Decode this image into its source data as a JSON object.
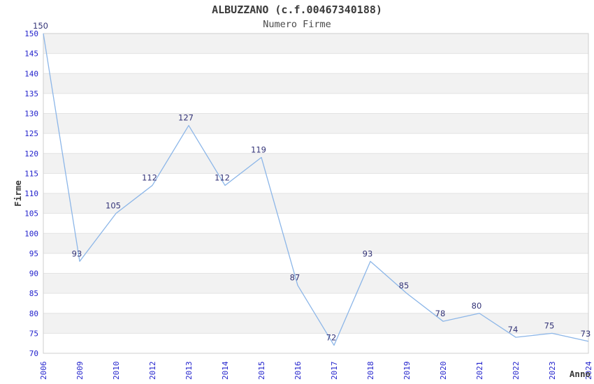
{
  "chart_data": {
    "type": "line",
    "title": "ALBUZZANO (c.f.00467340188)",
    "subtitle": "Numero Firme",
    "xlabel": "Anno",
    "ylabel": "Firme",
    "x": [
      "2006",
      "2009",
      "2010",
      "2012",
      "2013",
      "2014",
      "2015",
      "2016",
      "2017",
      "2018",
      "2019",
      "2020",
      "2021",
      "2022",
      "2023",
      "2024"
    ],
    "values": [
      150,
      93,
      105,
      112,
      127,
      112,
      119,
      87,
      72,
      93,
      85,
      78,
      80,
      74,
      75,
      73
    ],
    "point_labels": [
      "150",
      "93",
      "105",
      "112",
      "127",
      "112",
      "119",
      "87",
      "72",
      "93",
      "85",
      "78",
      "80",
      "74",
      "75",
      "73"
    ],
    "ylim": [
      70,
      150
    ],
    "ytick_step": 5,
    "yticks": [
      70,
      75,
      80,
      85,
      90,
      95,
      100,
      105,
      110,
      115,
      120,
      125,
      130,
      135,
      140,
      145,
      150
    ],
    "grid": "horizontal-stripes",
    "legend_position": "none",
    "colors": {
      "line": "#8cb6e8",
      "point_label": "#333377",
      "tick_label": "#2222cc",
      "axis_name": "#3a3a3a",
      "stripe_fill": "#f2f2f2",
      "gridline": "#e3e3e3",
      "plot_border": "#cfcfcf",
      "background": "#ffffff"
    }
  }
}
